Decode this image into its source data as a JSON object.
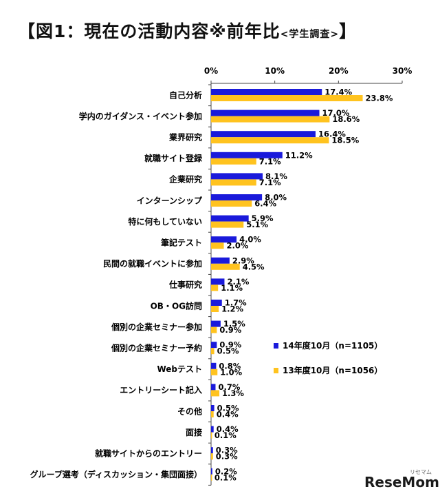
{
  "title": {
    "main": "【図1：現在の活動内容※前年比",
    "sub": "<学生調査>",
    "close": "】"
  },
  "chart_data": {
    "type": "bar",
    "orientation": "horizontal",
    "xlim": [
      0,
      30
    ],
    "x_ticks": [
      "0%",
      "10%",
      "20%",
      "30%"
    ],
    "categories": [
      "自己分析",
      "学内のガイダンス・イベント参加",
      "業界研究",
      "就職サイト登録",
      "企業研究",
      "インターンシップ",
      "特に何もしていない",
      "筆記テスト",
      "民間の就職イベントに参加",
      "仕事研究",
      "OB・OG訪問",
      "個別の企業セミナー参加",
      "個別の企業セミナー予約",
      "Webテスト",
      "エントリーシート記入",
      "その他",
      "面接",
      "就職サイトからのエントリー",
      "グループ選考（ディスカッション・集団面接）"
    ],
    "series": [
      {
        "name": "14年度10月（n=1105）",
        "color": "#1a1adb",
        "values": [
          17.4,
          17.0,
          16.4,
          11.2,
          8.1,
          8.0,
          5.9,
          4.0,
          2.9,
          2.1,
          1.7,
          1.5,
          0.9,
          0.8,
          0.7,
          0.5,
          0.4,
          0.3,
          0.2
        ]
      },
      {
        "name": "13年度10月（n=1056）",
        "color": "#ffc31f",
        "values": [
          23.8,
          18.6,
          18.5,
          7.1,
          7.1,
          6.4,
          5.1,
          2.0,
          4.5,
          1.1,
          1.2,
          0.9,
          0.5,
          1.0,
          1.3,
          0.4,
          0.1,
          0.3,
          0.1
        ]
      }
    ],
    "legend_position": "right",
    "grid": false
  },
  "watermark": {
    "logo": "ReseMom",
    "logo_sub": "リセマム"
  }
}
